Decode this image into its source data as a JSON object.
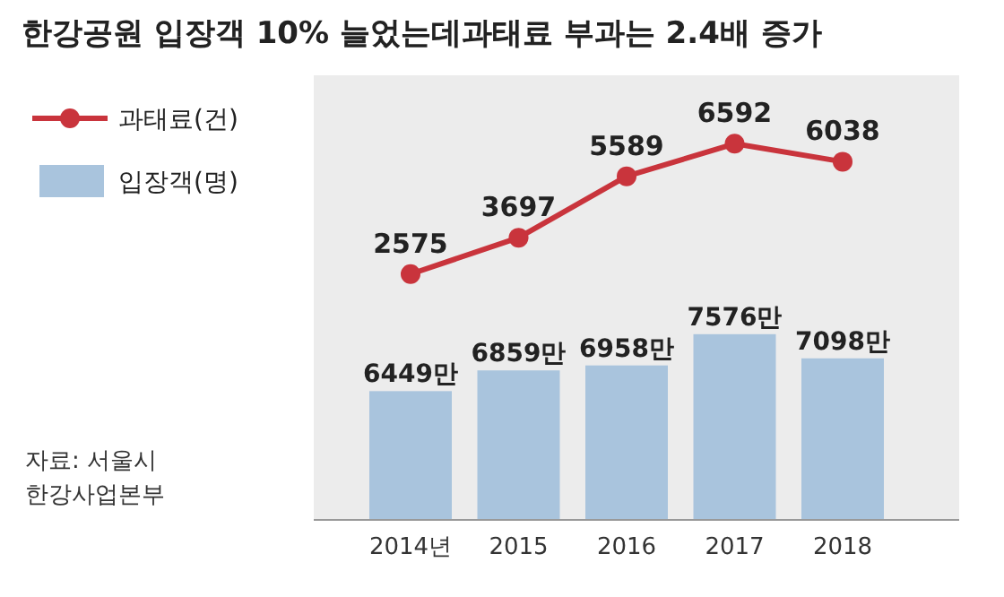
{
  "chart_data": {
    "type": "bar",
    "title": "한강공원 입장객 10% 늘었는데과태료 부과는 2.4배 증가",
    "categories": [
      "2014년",
      "2015",
      "2016",
      "2017",
      "2018"
    ],
    "series": [
      {
        "name": "입장객(명)",
        "color": "#a9c4dd",
        "values": [
          6449,
          6859,
          6958,
          7576,
          7098
        ],
        "value_labels": [
          "6449만",
          "6859만",
          "6958만",
          "7576만",
          "7098만"
        ]
      },
      {
        "name": "과태료(건)",
        "type": "line",
        "axis": "y2",
        "color": "#c9343c",
        "values": [
          2575,
          3697,
          5589,
          6592,
          6038
        ],
        "marker": "circle"
      }
    ],
    "ylim": [
      3900,
      12700
    ],
    "y2lim": [
      -5000,
      8700
    ],
    "data_labels": true,
    "legend": "top left",
    "annotations": [
      "자료: 서울시",
      "한강사업본부"
    ]
  }
}
